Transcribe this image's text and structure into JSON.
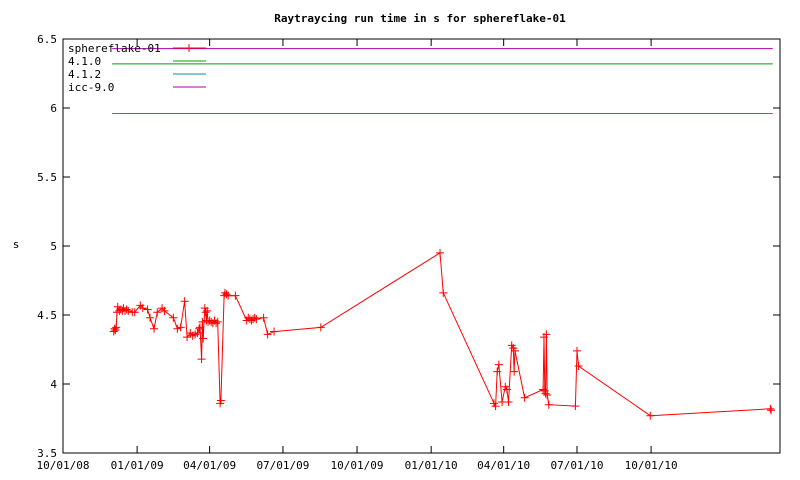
{
  "chart_data": {
    "type": "line",
    "title": "Raytraycing run time in s for sphereflake-01",
    "xlabel": "",
    "ylabel": "s",
    "xlim": [
      "2008-10-01",
      "2011-03-10"
    ],
    "ylim": [
      3.5,
      6.5
    ],
    "y_ticks": [
      "3.5",
      "4",
      "4.5",
      "5",
      "5.5",
      "6",
      "6.5"
    ],
    "x_ticks": [
      {
        "date": "2008-10-01",
        "label": "10/01/08"
      },
      {
        "date": "2009-01-01",
        "label": "01/01/09"
      },
      {
        "date": "2009-04-01",
        "label": "04/01/09"
      },
      {
        "date": "2009-07-01",
        "label": "07/01/09"
      },
      {
        "date": "2009-10-01",
        "label": "10/01/09"
      },
      {
        "date": "2010-01-01",
        "label": "01/01/10"
      },
      {
        "date": "2010-04-01",
        "label": "04/01/10"
      },
      {
        "date": "2010-07-01",
        "label": "07/01/10"
      },
      {
        "date": "2010-10-01",
        "label": "10/01/10"
      }
    ],
    "grid": false,
    "legend_position": "top-left",
    "series": [
      {
        "name": "sphereflake-01",
        "color": "#ff0000",
        "marker": "plus",
        "points": [
          [
            "2008-12-03",
            4.38
          ],
          [
            "2008-12-04",
            4.4
          ],
          [
            "2008-12-05",
            4.39
          ],
          [
            "2008-12-06",
            4.41
          ],
          [
            "2008-12-07",
            4.52
          ],
          [
            "2008-12-08",
            4.56
          ],
          [
            "2008-12-10",
            4.53
          ],
          [
            "2008-12-12",
            4.54
          ],
          [
            "2008-12-14",
            4.53
          ],
          [
            "2008-12-15",
            4.55
          ],
          [
            "2008-12-17",
            4.53
          ],
          [
            "2008-12-19",
            4.54
          ],
          [
            "2008-12-21",
            4.53
          ],
          [
            "2008-12-26",
            4.52
          ],
          [
            "2008-12-29",
            4.52
          ],
          [
            "2009-01-05",
            4.57
          ],
          [
            "2009-01-08",
            4.55
          ],
          [
            "2009-01-14",
            4.54
          ],
          [
            "2009-01-17",
            4.48
          ],
          [
            "2009-01-22",
            4.4
          ],
          [
            "2009-01-26",
            4.52
          ],
          [
            "2009-02-01",
            4.55
          ],
          [
            "2009-02-04",
            4.53
          ],
          [
            "2009-02-15",
            4.48
          ],
          [
            "2009-02-20",
            4.4
          ],
          [
            "2009-02-24",
            4.41
          ],
          [
            "2009-03-01",
            4.6
          ],
          [
            "2009-03-04",
            4.34
          ],
          [
            "2009-03-08",
            4.37
          ],
          [
            "2009-03-11",
            4.35
          ],
          [
            "2009-03-14",
            4.36
          ],
          [
            "2009-03-17",
            4.37
          ],
          [
            "2009-03-19",
            4.4
          ],
          [
            "2009-03-20",
            4.41
          ],
          [
            "2009-03-22",
            4.18
          ],
          [
            "2009-03-23",
            4.45
          ],
          [
            "2009-03-24",
            4.33
          ],
          [
            "2009-03-26",
            4.55
          ],
          [
            "2009-03-27",
            4.52
          ],
          [
            "2009-03-28",
            4.46
          ],
          [
            "2009-03-29",
            4.53
          ],
          [
            "2009-03-30",
            4.45
          ],
          [
            "2009-04-01",
            4.46
          ],
          [
            "2009-04-03",
            4.45
          ],
          [
            "2009-04-05",
            4.44
          ],
          [
            "2009-04-07",
            4.46
          ],
          [
            "2009-04-09",
            4.44
          ],
          [
            "2009-04-11",
            4.45
          ],
          [
            "2009-04-14",
            3.86
          ],
          [
            "2009-04-15",
            3.88
          ],
          [
            "2009-04-19",
            4.64
          ],
          [
            "2009-04-20",
            4.66
          ],
          [
            "2009-04-22",
            4.65
          ],
          [
            "2009-04-24",
            4.64
          ],
          [
            "2009-05-03",
            4.64
          ],
          [
            "2009-05-17",
            4.46
          ],
          [
            "2009-05-19",
            4.48
          ],
          [
            "2009-05-21",
            4.47
          ],
          [
            "2009-05-23",
            4.46
          ],
          [
            "2009-05-25",
            4.47
          ],
          [
            "2009-05-27",
            4.48
          ],
          [
            "2009-05-29",
            4.47
          ],
          [
            "2009-06-07",
            4.48
          ],
          [
            "2009-06-12",
            4.36
          ],
          [
            "2009-06-20",
            4.38
          ],
          [
            "2009-08-17",
            4.41
          ],
          [
            "2010-01-12",
            4.95
          ],
          [
            "2010-01-16",
            4.66
          ],
          [
            "2010-03-20",
            3.86
          ],
          [
            "2010-03-22",
            3.84
          ],
          [
            "2010-03-24",
            4.09
          ],
          [
            "2010-03-26",
            4.14
          ],
          [
            "2010-03-30",
            3.87
          ],
          [
            "2010-04-03",
            3.98
          ],
          [
            "2010-04-05",
            3.96
          ],
          [
            "2010-04-07",
            3.87
          ],
          [
            "2010-04-11",
            4.28
          ],
          [
            "2010-04-13",
            4.26
          ],
          [
            "2010-04-14",
            4.09
          ],
          [
            "2010-04-15",
            4.24
          ],
          [
            "2010-04-27",
            3.9
          ],
          [
            "2010-05-20",
            3.96
          ],
          [
            "2010-05-21",
            4.34
          ],
          [
            "2010-05-22",
            3.95
          ],
          [
            "2010-05-23",
            3.93
          ],
          [
            "2010-05-24",
            4.36
          ],
          [
            "2010-05-25",
            3.92
          ],
          [
            "2010-05-27",
            3.85
          ],
          [
            "2010-06-29",
            3.84
          ],
          [
            "2010-07-01",
            4.24
          ],
          [
            "2010-07-03",
            4.13
          ],
          [
            "2010-09-30",
            3.77
          ],
          [
            "2011-02-26",
            3.82
          ],
          [
            "2011-02-27",
            3.81
          ]
        ]
      },
      {
        "name": "4.1.0",
        "color": "#00a000",
        "value": 6.32,
        "range": [
          "2008-12-01",
          "2011-03-01"
        ]
      },
      {
        "name": "4.1.2",
        "color": "#0090b0",
        "value": 5.96,
        "range": [
          "2008-12-01",
          "2011-03-01"
        ]
      },
      {
        "name": "icc-9.0",
        "color": "#b000b0",
        "value": 6.43,
        "range": [
          "2008-12-01",
          "2011-03-01"
        ]
      }
    ]
  }
}
